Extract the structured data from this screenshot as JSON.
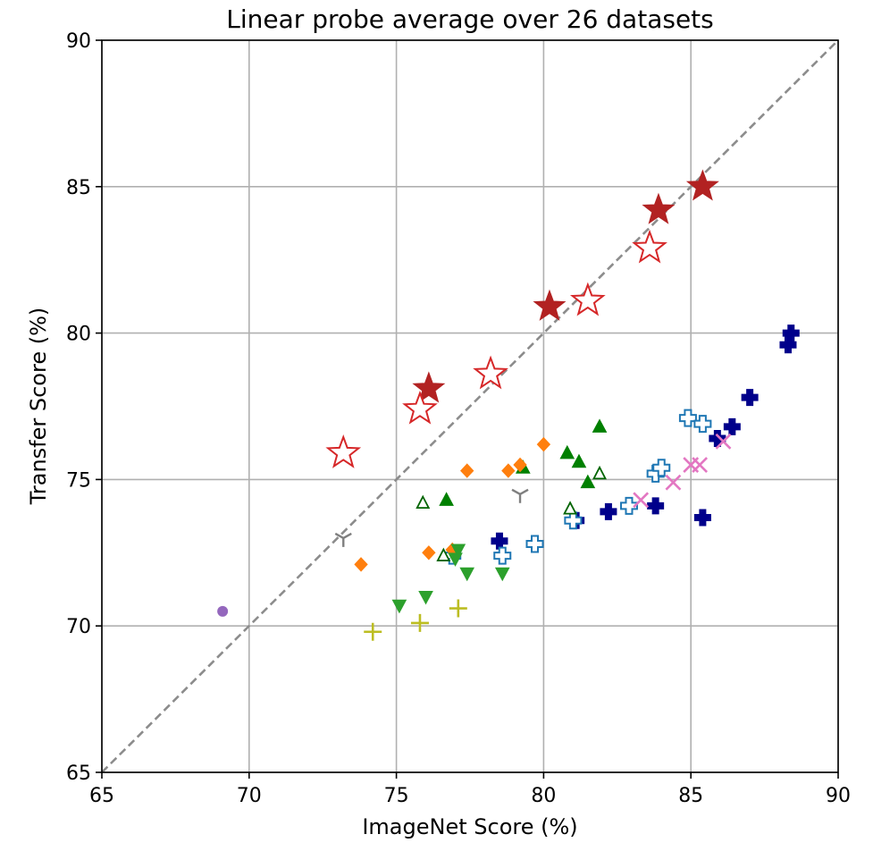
{
  "chart_data": {
    "type": "scatter",
    "title": "Linear probe average over 26 datasets",
    "xlabel": "ImageNet Score (%)",
    "ylabel": "Transfer Score (%)",
    "xlim": [
      65,
      90
    ],
    "ylim": [
      65,
      90
    ],
    "xticks": [
      "65",
      "70",
      "75",
      "80",
      "85",
      "90"
    ],
    "yticks": [
      "65",
      "70",
      "75",
      "80",
      "85",
      "90"
    ],
    "grid": true,
    "diagonal_line": {
      "style": "dashed",
      "color": "#8c8c8c",
      "from": [
        65,
        65
      ],
      "to": [
        90,
        90
      ]
    },
    "series": [
      {
        "marker": "star-filled",
        "color": "#b22222",
        "points": [
          [
            76.1,
            78.1
          ],
          [
            80.2,
            80.9
          ],
          [
            83.9,
            84.2
          ],
          [
            85.4,
            85.0
          ]
        ]
      },
      {
        "marker": "star-open",
        "color": "#d62728",
        "points": [
          [
            73.2,
            75.9
          ],
          [
            75.8,
            77.4
          ],
          [
            78.2,
            78.6
          ],
          [
            81.5,
            81.1
          ],
          [
            83.6,
            82.9
          ]
        ]
      },
      {
        "marker": "plus-filled",
        "color": "#00008b",
        "points": [
          [
            78.5,
            72.9
          ],
          [
            81.1,
            73.6
          ],
          [
            82.2,
            73.9
          ],
          [
            83.8,
            74.1
          ],
          [
            85.4,
            73.7
          ],
          [
            85.9,
            76.4
          ],
          [
            86.4,
            76.8
          ],
          [
            87.0,
            77.8
          ],
          [
            88.3,
            79.6
          ],
          [
            88.4,
            80.0
          ]
        ]
      },
      {
        "marker": "plus-open",
        "color": "#1f77b4",
        "points": [
          [
            76.9,
            72.4
          ],
          [
            78.6,
            72.4
          ],
          [
            79.7,
            72.8
          ],
          [
            81.0,
            73.6
          ],
          [
            82.9,
            74.1
          ],
          [
            83.8,
            75.2
          ],
          [
            84.0,
            75.4
          ],
          [
            84.9,
            77.1
          ],
          [
            85.4,
            76.9
          ]
        ]
      },
      {
        "marker": "triangle-up-filled",
        "color": "#008000",
        "points": [
          [
            76.7,
            74.3
          ],
          [
            79.3,
            75.4
          ],
          [
            80.8,
            75.9
          ],
          [
            81.2,
            75.6
          ],
          [
            81.5,
            74.9
          ],
          [
            81.9,
            76.8
          ]
        ]
      },
      {
        "marker": "triangle-up-open",
        "color": "#006400",
        "points": [
          [
            75.9,
            74.2
          ],
          [
            76.6,
            72.4
          ],
          [
            80.9,
            74.0
          ],
          [
            81.9,
            75.2
          ]
        ]
      },
      {
        "marker": "diamond",
        "color": "#ff7f0e",
        "points": [
          [
            73.8,
            72.1
          ],
          [
            76.1,
            72.5
          ],
          [
            76.9,
            72.6
          ],
          [
            77.4,
            75.3
          ],
          [
            78.8,
            75.3
          ],
          [
            79.2,
            75.5
          ],
          [
            80.0,
            76.2
          ]
        ]
      },
      {
        "marker": "triangle-down",
        "color": "#2ca02c",
        "points": [
          [
            75.1,
            70.7
          ],
          [
            76.0,
            71.0
          ],
          [
            77.0,
            72.3
          ],
          [
            77.1,
            72.6
          ],
          [
            77.4,
            71.8
          ],
          [
            78.6,
            71.8
          ]
        ]
      },
      {
        "marker": "plus-thin",
        "color": "#bcbd22",
        "points": [
          [
            74.2,
            69.8
          ],
          [
            75.8,
            70.1
          ],
          [
            77.1,
            70.6
          ]
        ]
      },
      {
        "marker": "x",
        "color": "#e377c2",
        "points": [
          [
            83.3,
            74.3
          ],
          [
            84.4,
            74.9
          ],
          [
            85.0,
            75.5
          ],
          [
            85.3,
            75.5
          ],
          [
            86.1,
            76.3
          ]
        ]
      },
      {
        "marker": "tri-down",
        "color": "#7f7f7f",
        "points": [
          [
            73.2,
            73.0
          ],
          [
            79.2,
            74.5
          ]
        ]
      },
      {
        "marker": "circle",
        "color": "#9467bd",
        "points": [
          [
            69.1,
            70.5
          ]
        ]
      }
    ]
  }
}
